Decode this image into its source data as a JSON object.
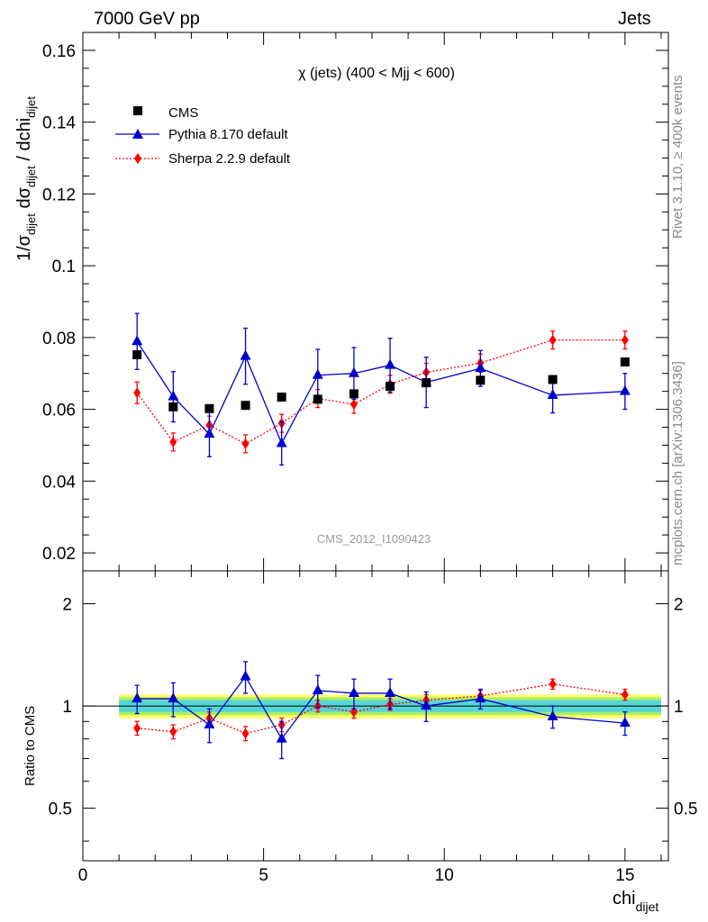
{
  "header": {
    "left": "7000 GeV pp",
    "right": "Jets"
  },
  "side_labels": {
    "top": "Rivet 3.1.10, ≥ 400k events",
    "bottom": "mcplots.cern.ch [arXiv:1306.3436]"
  },
  "chart_data": {
    "type": "scatter",
    "title": "χ (jets) (400 < Mjj <  600)",
    "analysis_id": "CMS_2012_I1090423",
    "x": [
      1.5,
      2.5,
      3.5,
      4.5,
      5.5,
      6.5,
      7.5,
      8.5,
      9.5,
      11.0,
      13.0,
      15.0
    ],
    "xlabel": {
      "main": "chi",
      "sub": "dijet"
    },
    "ylabel": {
      "p1": "1/σ",
      "s1": "dijet",
      "p2": " dσ",
      "s2": "dijet",
      "p3": " / dchi",
      "s3": "dijet"
    },
    "xlim": [
      0,
      16.2
    ],
    "ylim": [
      0.015,
      0.165
    ],
    "xticks": [
      0,
      5,
      10,
      15
    ],
    "xticklabels": [
      "0",
      "5",
      "10",
      "15"
    ],
    "yticks": [
      0.02,
      0.04,
      0.06,
      0.08,
      0.1,
      0.12,
      0.14,
      0.16
    ],
    "yticklabels": [
      "0.02",
      "0.04",
      "0.06",
      "0.08",
      "0.1",
      "0.12",
      "0.14",
      "0.16"
    ],
    "legend_position": "top-left",
    "series": [
      {
        "name": "CMS",
        "color": "#000000",
        "marker": "square",
        "values": [
          0.0752,
          0.0607,
          0.0602,
          0.0611,
          0.0634,
          0.0628,
          0.0643,
          0.0664,
          0.0674,
          0.0681,
          0.0683,
          0.0732
        ]
      },
      {
        "name": "Pythia 8.170 default",
        "color": "#0000cc",
        "marker": "triangle",
        "line": "solid",
        "values": [
          0.0789,
          0.0635,
          0.0531,
          0.0748,
          0.0505,
          0.0695,
          0.07,
          0.0723,
          0.0675,
          0.0714,
          0.0639,
          0.065
        ],
        "errors": [
          0.0078,
          0.007,
          0.0063,
          0.0078,
          0.006,
          0.0072,
          0.0072,
          0.0075,
          0.007,
          0.005,
          0.0049,
          0.005
        ]
      },
      {
        "name": "Sherpa 2.2.9 default",
        "color": "#ff0000",
        "marker": "diamond",
        "line": "dotted",
        "values": [
          0.0646,
          0.0509,
          0.0556,
          0.0504,
          0.0561,
          0.063,
          0.0614,
          0.067,
          0.0703,
          0.0729,
          0.0793,
          0.0793
        ],
        "errors": [
          0.003,
          0.0025,
          0.0025,
          0.0025,
          0.0025,
          0.0025,
          0.0025,
          0.0025,
          0.0025,
          0.0025,
          0.0025,
          0.0025
        ]
      }
    ],
    "ratio": {
      "ylabel": "Ratio to CMS",
      "ylim": [
        0.35,
        2.5
      ],
      "scale": "log",
      "yticks": [
        0.5,
        1,
        2
      ],
      "yticklabels": [
        "0.5",
        "1",
        "2"
      ],
      "band_inner": [
        0.96,
        1.04
      ],
      "band_outer": [
        0.92,
        1.08
      ],
      "band_colors": {
        "outer": "#ffff66",
        "mid": "#aaee66",
        "inner": "#55d6d6"
      },
      "pythia": [
        1.05,
        1.05,
        0.88,
        1.22,
        0.8,
        1.11,
        1.09,
        1.09,
        1.0,
        1.05,
        0.93,
        0.89
      ],
      "pythia_errors": [
        0.1,
        0.12,
        0.1,
        0.13,
        0.1,
        0.12,
        0.11,
        0.11,
        0.1,
        0.07,
        0.07,
        0.07
      ],
      "sherpa": [
        0.86,
        0.84,
        0.92,
        0.83,
        0.88,
        1.0,
        0.96,
        1.01,
        1.04,
        1.07,
        1.16,
        1.08
      ],
      "sherpa_errors": [
        0.04,
        0.04,
        0.04,
        0.04,
        0.04,
        0.04,
        0.04,
        0.04,
        0.04,
        0.04,
        0.04,
        0.04
      ]
    }
  }
}
